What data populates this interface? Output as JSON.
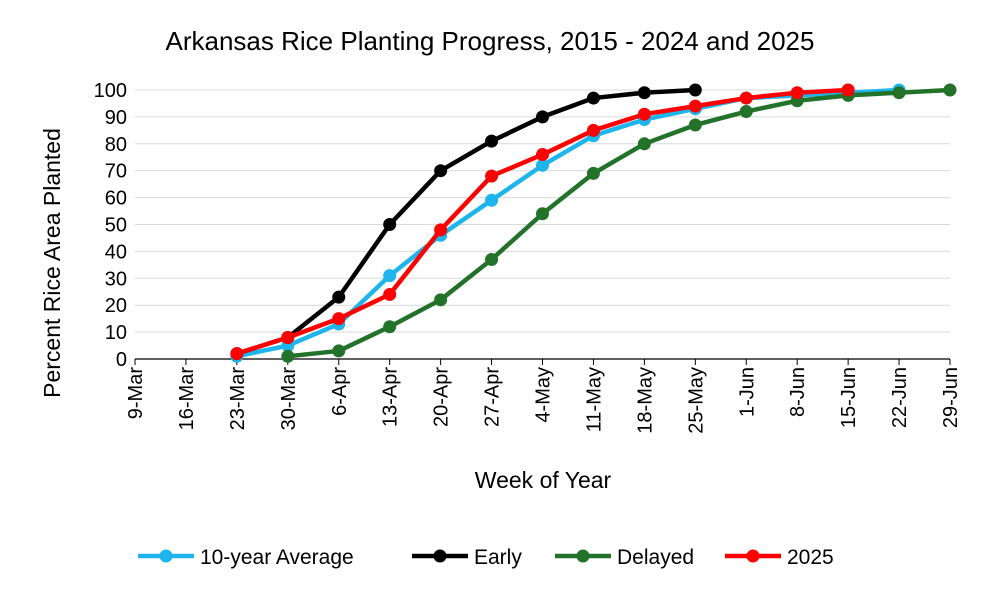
{
  "chart_data": {
    "type": "line",
    "title": "Arkansas Rice Planting  Progress, 2015 - 2024 and 2025",
    "xlabel": "Week of Year",
    "ylabel": "Percent Rice Area Planted",
    "categories": [
      "9-Mar",
      "16-Mar",
      "23-Mar",
      "30-Mar",
      "6-Apr",
      "13-Apr",
      "20-Apr",
      "27-Apr",
      "4-May",
      "11-May",
      "18-May",
      "25-May",
      "1-Jun",
      "8-Jun",
      "15-Jun",
      "22-Jun",
      "29-Jun"
    ],
    "yticks": [
      "0",
      "10",
      "20",
      "30",
      "40",
      "50",
      "60",
      "70",
      "80",
      "90",
      "100"
    ],
    "ylim": [
      0,
      100
    ],
    "grid": true,
    "legend_position": "bottom",
    "series": [
      {
        "name": "10-year Average",
        "color": "#1EB4EC",
        "values": [
          null,
          null,
          1,
          5,
          13,
          31,
          46,
          59,
          72,
          83,
          89,
          93,
          97,
          98,
          99,
          100,
          null
        ]
      },
      {
        "name": "Early",
        "color": "#000000",
        "values": [
          null,
          null,
          2,
          8,
          23,
          50,
          70,
          81,
          90,
          97,
          99,
          100,
          null,
          null,
          null,
          null,
          null
        ]
      },
      {
        "name": "Delayed",
        "color": "#23722A",
        "values": [
          null,
          null,
          null,
          1,
          3,
          12,
          22,
          37,
          54,
          69,
          80,
          87,
          92,
          96,
          98,
          99,
          100
        ]
      },
      {
        "name": "2025",
        "color": "#FF0000",
        "values": [
          null,
          null,
          2,
          8,
          15,
          24,
          48,
          68,
          76,
          85,
          91,
          94,
          97,
          99,
          100,
          null,
          null
        ]
      }
    ]
  }
}
